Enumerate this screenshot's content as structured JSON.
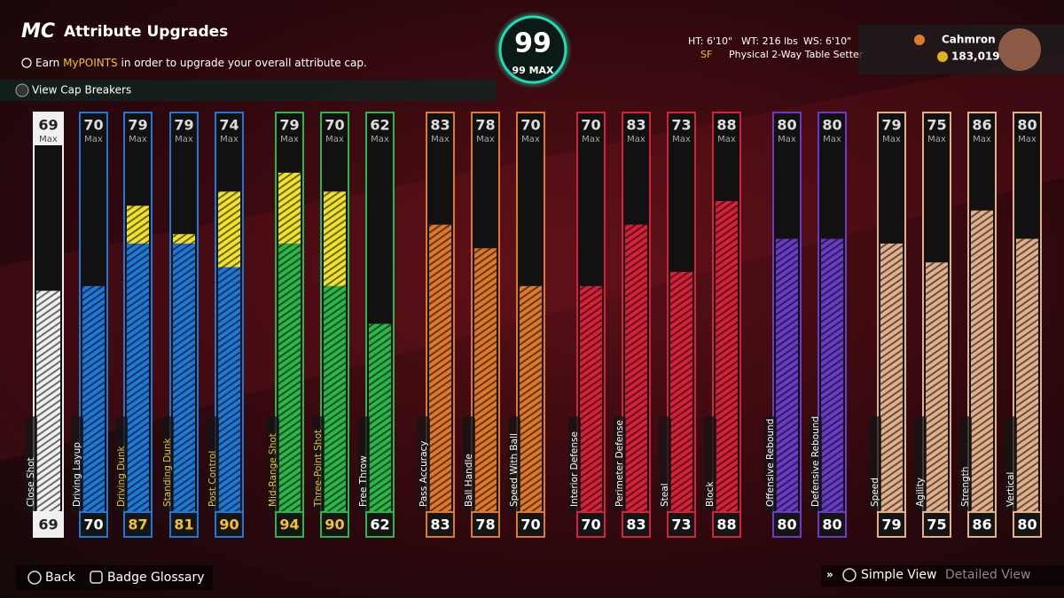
{
  "header": {
    "logo": "MC",
    "title": "Attribute Upgrades",
    "info_before": "Earn ",
    "info_highlight": "MyPOINTS",
    "info_after": " in order to upgrade your overall attribute cap.",
    "cap_breakers": "View Cap Breakers"
  },
  "overall": {
    "rating": "99",
    "max": "99 MAX"
  },
  "player": {
    "height": "HT: 6'10\"",
    "weight": "WT: 216 lbs",
    "wingspan": "WS: 6'10\"",
    "position": "SF",
    "archetype": "Physical 2-Way Table Setter",
    "name": "Cahmron",
    "vc": "183,019"
  },
  "max_label": "Max",
  "attributes": [
    {
      "name": "Close Shot",
      "rating": 69,
      "cap": 69,
      "color": "#f0f0f0"
    },
    {
      "name": "Driving Layup",
      "rating": 70,
      "cap": 70,
      "color": "#1f78d6"
    },
    {
      "name": "Driving Dunk",
      "rating": 79,
      "cap": 87,
      "color": "#1f78d6"
    },
    {
      "name": "Standing Dunk",
      "rating": 79,
      "cap": 81,
      "color": "#1f78d6"
    },
    {
      "name": "Post Control",
      "rating": 74,
      "cap": 90,
      "color": "#1f78d6"
    },
    {
      "name": "Mid-Range Shot",
      "rating": 79,
      "cap": 94,
      "color": "#2bb54a"
    },
    {
      "name": "Three-Point Shot",
      "rating": 70,
      "cap": 90,
      "color": "#2bb54a"
    },
    {
      "name": "Free Throw",
      "rating": 62,
      "cap": 62,
      "color": "#2bb54a"
    },
    {
      "name": "Pass Accuracy",
      "rating": 83,
      "cap": 83,
      "color": "#e0782a"
    },
    {
      "name": "Ball Handle",
      "rating": 78,
      "cap": 78,
      "color": "#e0782a"
    },
    {
      "name": "Speed With Ball",
      "rating": 70,
      "cap": 70,
      "color": "#e0782a"
    },
    {
      "name": "Interior Defense",
      "rating": 70,
      "cap": 70,
      "color": "#d6213a"
    },
    {
      "name": "Perimeter Defense",
      "rating": 83,
      "cap": 83,
      "color": "#d6213a"
    },
    {
      "name": "Steal",
      "rating": 73,
      "cap": 73,
      "color": "#d6213a"
    },
    {
      "name": "Block",
      "rating": 88,
      "cap": 88,
      "color": "#d6213a"
    },
    {
      "name": "Offensive Rebound",
      "rating": 80,
      "cap": 80,
      "color": "#6a3bc6"
    },
    {
      "name": "Defensive Rebound",
      "rating": 80,
      "cap": 80,
      "color": "#6a3bc6"
    },
    {
      "name": "Speed",
      "rating": 79,
      "cap": 79,
      "color": "#e3b08c"
    },
    {
      "name": "Agility",
      "rating": 75,
      "cap": 75,
      "color": "#e3b08c"
    },
    {
      "name": "Strength",
      "rating": 86,
      "cap": 86,
      "color": "#e3b08c"
    },
    {
      "name": "Vertical",
      "rating": 80,
      "cap": 80,
      "color": "#e3b08c"
    }
  ],
  "footer": {
    "back": "Back",
    "badge_glossary": "Badge Glossary",
    "simple_view": "Simple View",
    "detailed_view": "Detailed View"
  }
}
